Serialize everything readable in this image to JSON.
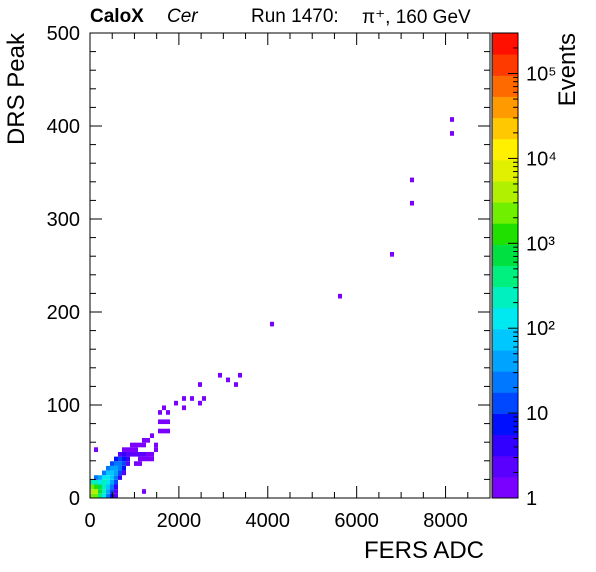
{
  "header": {
    "experiment": "CaloX",
    "channel": "Cer",
    "run": "Run 1470:",
    "beam": "π⁺, 160 GeV"
  },
  "chart_data": {
    "type": "heatmap",
    "title": "",
    "xlabel": "FERS ADC",
    "ylabel": "DRS Peak",
    "xlim": [
      0,
      9000
    ],
    "ylim": [
      0,
      500
    ],
    "bin_width_x": 90,
    "bin_height_y": 5,
    "x_ticks": [
      0,
      2000,
      4000,
      6000,
      8000
    ],
    "x_tick_labels": [
      "0",
      "2000",
      "4000",
      "6000",
      "8000"
    ],
    "y_ticks": [
      0,
      100,
      200,
      300,
      400,
      500
    ],
    "y_tick_labels": [
      "0",
      "100",
      "200",
      "300",
      "400",
      "500"
    ],
    "grid": false,
    "legend": "none",
    "colorbar": {
      "label": "Events",
      "scale": "log",
      "range": [
        1,
        300000
      ],
      "tick_labels": [
        {
          "value": 1,
          "label": "1"
        },
        {
          "value": 10,
          "label": "10"
        },
        {
          "value": 100,
          "label": "10²"
        },
        {
          "value": 1000,
          "label": "10³"
        },
        {
          "value": 10000,
          "label": "10⁴"
        },
        {
          "value": 100000,
          "label": "10⁵"
        }
      ]
    },
    "bins": [
      [
        45,
        2,
        3000
      ],
      [
        135,
        2,
        2500
      ],
      [
        225,
        2,
        400
      ],
      [
        315,
        2,
        120
      ],
      [
        405,
        2,
        30
      ],
      [
        495,
        2,
        8
      ],
      [
        585,
        2,
        3
      ],
      [
        45,
        7,
        5000
      ],
      [
        135,
        7,
        4000
      ],
      [
        225,
        7,
        800
      ],
      [
        315,
        7,
        200
      ],
      [
        405,
        7,
        40
      ],
      [
        495,
        7,
        10
      ],
      [
        585,
        7,
        3
      ],
      [
        45,
        12,
        2000
      ],
      [
        135,
        12,
        1500
      ],
      [
        225,
        12,
        900
      ],
      [
        315,
        12,
        300
      ],
      [
        405,
        12,
        80
      ],
      [
        495,
        12,
        20
      ],
      [
        585,
        12,
        5
      ],
      [
        45,
        17,
        200
      ],
      [
        135,
        17,
        300
      ],
      [
        225,
        17,
        150
      ],
      [
        315,
        17,
        250
      ],
      [
        405,
        17,
        120
      ],
      [
        495,
        17,
        40
      ],
      [
        585,
        17,
        10
      ],
      [
        135,
        22,
        20
      ],
      [
        225,
        22,
        40
      ],
      [
        315,
        22,
        100
      ],
      [
        405,
        22,
        150
      ],
      [
        495,
        22,
        60
      ],
      [
        585,
        22,
        20
      ],
      [
        675,
        22,
        5
      ],
      [
        315,
        27,
        30
      ],
      [
        405,
        27,
        70
      ],
      [
        495,
        27,
        90
      ],
      [
        585,
        27,
        40
      ],
      [
        675,
        27,
        12
      ],
      [
        765,
        27,
        3
      ],
      [
        405,
        32,
        25
      ],
      [
        495,
        32,
        50
      ],
      [
        585,
        32,
        40
      ],
      [
        675,
        32,
        20
      ],
      [
        765,
        32,
        6
      ],
      [
        495,
        37,
        12
      ],
      [
        585,
        37,
        25
      ],
      [
        675,
        37,
        20
      ],
      [
        765,
        37,
        10
      ],
      [
        855,
        37,
        3
      ],
      [
        585,
        42,
        6
      ],
      [
        675,
        42,
        12
      ],
      [
        765,
        42,
        8
      ],
      [
        855,
        42,
        4
      ],
      [
        675,
        47,
        3
      ],
      [
        765,
        47,
        4
      ],
      [
        855,
        47,
        2
      ],
      [
        945,
        47,
        2
      ],
      [
        765,
        52,
        1
      ],
      [
        855,
        52,
        1
      ],
      [
        945,
        52,
        1
      ],
      [
        1035,
        52,
        1
      ],
      [
        945,
        57,
        1
      ],
      [
        1035,
        57,
        1
      ],
      [
        1125,
        57,
        1
      ],
      [
        1215,
        57,
        1
      ],
      [
        1215,
        62,
        1
      ],
      [
        1305,
        62,
        1
      ],
      [
        1395,
        67,
        1
      ],
      [
        1125,
        42,
        1
      ],
      [
        1215,
        42,
        1
      ],
      [
        1305,
        42,
        1
      ],
      [
        1395,
        42,
        1
      ],
      [
        1035,
        47,
        2
      ],
      [
        1125,
        47,
        2
      ],
      [
        1215,
        47,
        2
      ],
      [
        1305,
        47,
        1
      ],
      [
        1395,
        47,
        1
      ],
      [
        1035,
        37,
        1
      ],
      [
        1125,
        37,
        1
      ],
      [
        1485,
        52,
        1
      ],
      [
        1485,
        57,
        1
      ],
      [
        1575,
        72,
        1
      ],
      [
        1665,
        72,
        1
      ],
      [
        1755,
        72,
        1
      ],
      [
        1575,
        82,
        1
      ],
      [
        1665,
        82,
        1
      ],
      [
        1755,
        82,
        1
      ],
      [
        1575,
        92,
        1
      ],
      [
        1665,
        97,
        1
      ],
      [
        1755,
        92,
        1
      ],
      [
        1935,
        102,
        1
      ],
      [
        2115,
        107,
        1
      ],
      [
        2115,
        97,
        1
      ],
      [
        2295,
        107,
        1
      ],
      [
        2475,
        102,
        1
      ],
      [
        2475,
        122,
        1
      ],
      [
        2565,
        107,
        1
      ],
      [
        2925,
        132,
        1
      ],
      [
        3105,
        127,
        1
      ],
      [
        3285,
        122,
        1
      ],
      [
        3375,
        132,
        1
      ],
      [
        4095,
        187,
        1
      ],
      [
        5625,
        217,
        1
      ],
      [
        6795,
        262,
        1
      ],
      [
        7245,
        317,
        1
      ],
      [
        7245,
        342,
        1
      ],
      [
        8145,
        392,
        1
      ],
      [
        8145,
        407,
        1
      ],
      [
        1215,
        7,
        1
      ],
      [
        135,
        52,
        1
      ]
    ]
  }
}
